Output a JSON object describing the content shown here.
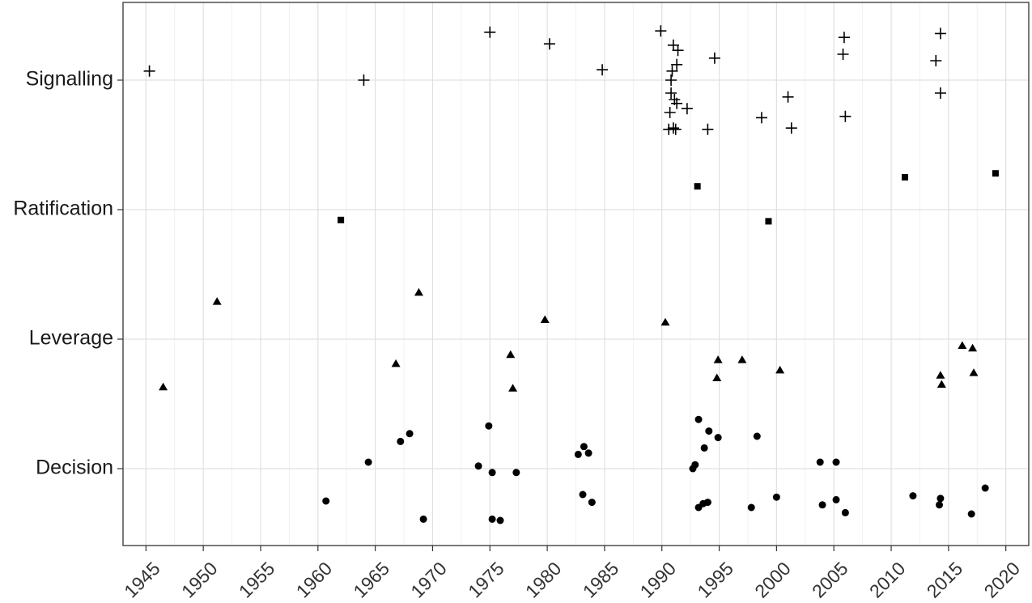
{
  "chart_data": {
    "type": "scatter",
    "title": "",
    "xlabel": "",
    "ylabel": "",
    "x_ticks": [
      "1945",
      "1950",
      "1955",
      "1960",
      "1965",
      "1970",
      "1975",
      "1980",
      "1985",
      "1990",
      "1995",
      "2000",
      "2005",
      "2010",
      "2015",
      "2020"
    ],
    "xlim": [
      1943,
      2022
    ],
    "categories": [
      "Decision",
      "Leverage",
      "Ratification",
      "Signalling"
    ],
    "grid": true,
    "legend": "none",
    "series": [
      {
        "category": "Signalling",
        "marker": "plus",
        "points": [
          {
            "x": 1945.3,
            "j": 0.07
          },
          {
            "x": 1964.0,
            "j": 0.0
          },
          {
            "x": 1975.0,
            "j": 0.37
          },
          {
            "x": 1980.2,
            "j": 0.28
          },
          {
            "x": 1984.8,
            "j": 0.08
          },
          {
            "x": 1989.9,
            "j": 0.38
          },
          {
            "x": 1990.6,
            "j": -0.38
          },
          {
            "x": 1990.7,
            "j": -0.25
          },
          {
            "x": 1990.8,
            "j": -0.1
          },
          {
            "x": 1990.8,
            "j": 0.0
          },
          {
            "x": 1990.9,
            "j": 0.07
          },
          {
            "x": 1991.0,
            "j": 0.27
          },
          {
            "x": 1991.0,
            "j": -0.37
          },
          {
            "x": 1991.1,
            "j": -0.15
          },
          {
            "x": 1991.2,
            "j": -0.38
          },
          {
            "x": 1991.3,
            "j": 0.12
          },
          {
            "x": 1991.4,
            "j": 0.23
          },
          {
            "x": 1991.3,
            "j": -0.18
          },
          {
            "x": 1992.2,
            "j": -0.22
          },
          {
            "x": 1994.0,
            "j": -0.38
          },
          {
            "x": 1994.6,
            "j": 0.17
          },
          {
            "x": 1998.7,
            "j": -0.29
          },
          {
            "x": 2001.0,
            "j": -0.13
          },
          {
            "x": 2001.3,
            "j": -0.37
          },
          {
            "x": 2005.9,
            "j": 0.33
          },
          {
            "x": 2005.8,
            "j": 0.2
          },
          {
            "x": 2006.0,
            "j": -0.28
          },
          {
            "x": 2013.9,
            "j": 0.15
          },
          {
            "x": 2014.3,
            "j": 0.36
          },
          {
            "x": 2014.3,
            "j": -0.1
          }
        ]
      },
      {
        "category": "Ratification",
        "marker": "square",
        "points": [
          {
            "x": 1962.0,
            "j": -0.08
          },
          {
            "x": 1993.1,
            "j": 0.18
          },
          {
            "x": 1999.3,
            "j": -0.09
          },
          {
            "x": 2011.2,
            "j": 0.25
          },
          {
            "x": 2019.1,
            "j": 0.28
          }
        ]
      },
      {
        "category": "Leverage",
        "marker": "triangle",
        "points": [
          {
            "x": 1946.5,
            "j": -0.37
          },
          {
            "x": 1951.2,
            "j": 0.29
          },
          {
            "x": 1966.8,
            "j": -0.19
          },
          {
            "x": 1968.8,
            "j": 0.36
          },
          {
            "x": 1976.8,
            "j": -0.12
          },
          {
            "x": 1977.0,
            "j": -0.38
          },
          {
            "x": 1979.8,
            "j": 0.15
          },
          {
            "x": 1990.3,
            "j": 0.13
          },
          {
            "x": 1994.9,
            "j": -0.16
          },
          {
            "x": 1994.8,
            "j": -0.3
          },
          {
            "x": 1997.0,
            "j": -0.16
          },
          {
            "x": 2000.3,
            "j": -0.24
          },
          {
            "x": 2014.3,
            "j": -0.28
          },
          {
            "x": 2014.4,
            "j": -0.35
          },
          {
            "x": 2016.2,
            "j": -0.05
          },
          {
            "x": 2017.1,
            "j": -0.07
          },
          {
            "x": 2017.2,
            "j": -0.26
          }
        ]
      },
      {
        "category": "Decision",
        "marker": "circle",
        "points": [
          {
            "x": 1960.7,
            "j": -0.25
          },
          {
            "x": 1964.4,
            "j": 0.05
          },
          {
            "x": 1967.2,
            "j": 0.21
          },
          {
            "x": 1968.0,
            "j": 0.27
          },
          {
            "x": 1969.2,
            "j": -0.39
          },
          {
            "x": 1974.0,
            "j": 0.02
          },
          {
            "x": 1974.9,
            "j": 0.33
          },
          {
            "x": 1975.2,
            "j": -0.39
          },
          {
            "x": 1975.2,
            "j": -0.03
          },
          {
            "x": 1975.9,
            "j": -0.4
          },
          {
            "x": 1977.3,
            "j": -0.03
          },
          {
            "x": 1982.7,
            "j": 0.11
          },
          {
            "x": 1983.1,
            "j": -0.2
          },
          {
            "x": 1983.2,
            "j": 0.17
          },
          {
            "x": 1983.6,
            "j": 0.12
          },
          {
            "x": 1983.9,
            "j": -0.26
          },
          {
            "x": 1992.7,
            "j": 0.0
          },
          {
            "x": 1992.9,
            "j": 0.03
          },
          {
            "x": 1993.2,
            "j": 0.38
          },
          {
            "x": 1993.2,
            "j": -0.3
          },
          {
            "x": 1993.6,
            "j": -0.27
          },
          {
            "x": 1993.7,
            "j": 0.16
          },
          {
            "x": 1994.0,
            "j": -0.26
          },
          {
            "x": 1994.1,
            "j": 0.29
          },
          {
            "x": 1994.9,
            "j": 0.24
          },
          {
            "x": 1997.8,
            "j": -0.3
          },
          {
            "x": 1998.3,
            "j": 0.25
          },
          {
            "x": 2000.0,
            "j": -0.22
          },
          {
            "x": 2003.8,
            "j": 0.05
          },
          {
            "x": 2004.0,
            "j": -0.28
          },
          {
            "x": 2005.2,
            "j": -0.24
          },
          {
            "x": 2005.2,
            "j": 0.05
          },
          {
            "x": 2006.0,
            "j": -0.34
          },
          {
            "x": 2011.9,
            "j": -0.21
          },
          {
            "x": 2014.2,
            "j": -0.28
          },
          {
            "x": 2014.3,
            "j": -0.23
          },
          {
            "x": 2017.0,
            "j": -0.35
          },
          {
            "x": 2018.2,
            "j": -0.15
          }
        ]
      }
    ]
  }
}
